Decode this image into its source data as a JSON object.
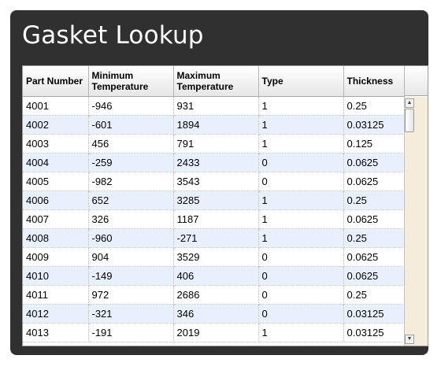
{
  "window": {
    "title": "Gasket Lookup"
  },
  "grid": {
    "columns": [
      {
        "label": "Part Number"
      },
      {
        "label": "Minimum Temperature"
      },
      {
        "label": "Maximum Temperature"
      },
      {
        "label": "Type"
      },
      {
        "label": "Thickness"
      }
    ],
    "rows": [
      [
        "4001",
        "-946",
        "931",
        "1",
        "0.25"
      ],
      [
        "4002",
        "-601",
        "1894",
        "1",
        "0.03125"
      ],
      [
        "4003",
        "456",
        "791",
        "1",
        "0.125"
      ],
      [
        "4004",
        "-259",
        "2433",
        "0",
        "0.0625"
      ],
      [
        "4005",
        "-982",
        "3543",
        "0",
        "0.0625"
      ],
      [
        "4006",
        "652",
        "3285",
        "1",
        "0.25"
      ],
      [
        "4007",
        "326",
        "1187",
        "1",
        "0.0625"
      ],
      [
        "4008",
        "-960",
        "-271",
        "1",
        "0.25"
      ],
      [
        "4009",
        "904",
        "3529",
        "0",
        "0.0625"
      ],
      [
        "4010",
        "-149",
        "406",
        "0",
        "0.0625"
      ],
      [
        "4011",
        "972",
        "2686",
        "0",
        "0.25"
      ],
      [
        "4012",
        "-321",
        "346",
        "0",
        "0.03125"
      ],
      [
        "4013",
        "-191",
        "2019",
        "1",
        "0.03125"
      ]
    ]
  },
  "scrollbar": {
    "up_icon": "arrow-up-icon",
    "down_icon": "arrow-down-icon"
  },
  "colors": {
    "panel": "#303030",
    "alt_row": "#e7f0fc",
    "scroll_track": "#f6ecdc"
  }
}
